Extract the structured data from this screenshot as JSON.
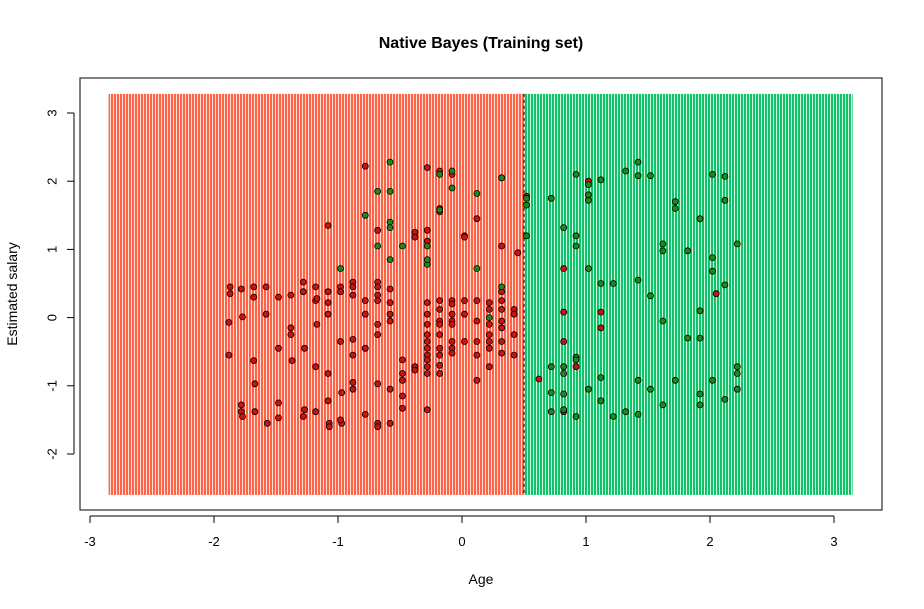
{
  "chart_data": {
    "type": "scatter",
    "title": "Native Bayes (Training set)",
    "xlabel": "Age",
    "ylabel": "Estimated salary",
    "xlim": [
      -3,
      3.3
    ],
    "ylim": [
      -2.85,
      3.5
    ],
    "xticks": [
      "-3",
      "-2",
      "-1",
      "0",
      "1",
      "2",
      "3"
    ],
    "yticks": [
      "-2",
      "-1",
      "0",
      "1",
      "2",
      "3"
    ],
    "region": {
      "x_range": [
        -2.85,
        3.15
      ],
      "y_range": [
        -2.6,
        3.28
      ],
      "boundary_x": 0.5,
      "left_color": "#FF6347",
      "right_color": "#10C569"
    },
    "colors": {
      "class0_point": "#CC1111",
      "class1_point": "#1A8A1A",
      "point_stroke": "#000000"
    },
    "series": [
      {
        "name": "0",
        "points": [
          [
            -1.87,
            0.45
          ],
          [
            -1.87,
            0.35
          ],
          [
            -1.88,
            -0.07
          ],
          [
            -1.88,
            -0.55
          ],
          [
            -1.78,
            0.42
          ],
          [
            -1.78,
            -1.28
          ],
          [
            -1.78,
            -1.38
          ],
          [
            -1.77,
            -1.45
          ],
          [
            -1.77,
            0.01
          ],
          [
            -1.68,
            0.45
          ],
          [
            -1.68,
            0.3
          ],
          [
            -1.68,
            -0.63
          ],
          [
            -1.67,
            -0.97
          ],
          [
            -1.67,
            -1.38
          ],
          [
            -1.58,
            0.45
          ],
          [
            -1.58,
            0.05
          ],
          [
            -1.57,
            -1.55
          ],
          [
            -1.48,
            0.3
          ],
          [
            -1.48,
            -0.45
          ],
          [
            -1.48,
            -1.25
          ],
          [
            -1.48,
            -1.47
          ],
          [
            -1.38,
            0.33
          ],
          [
            -1.38,
            -0.15
          ],
          [
            -1.38,
            -0.25
          ],
          [
            -1.37,
            -0.63
          ],
          [
            -1.28,
            0.52
          ],
          [
            -1.28,
            0.38
          ],
          [
            -1.27,
            -0.45
          ],
          [
            -1.27,
            -1.35
          ],
          [
            -1.28,
            -1.45
          ],
          [
            -1.18,
            0.45
          ],
          [
            -1.18,
            0.25
          ],
          [
            -1.17,
            0.28
          ],
          [
            -1.17,
            -0.1
          ],
          [
            -1.18,
            -0.72
          ],
          [
            -1.18,
            -1.38
          ],
          [
            -1.08,
            0.38
          ],
          [
            -1.08,
            0.22
          ],
          [
            -1.08,
            0.05
          ],
          [
            -1.08,
            -0.82
          ],
          [
            -1.08,
            -1.22
          ],
          [
            -1.07,
            -1.55
          ],
          [
            -1.07,
            -1.6
          ],
          [
            -1.08,
            1.35
          ],
          [
            -0.98,
            0.45
          ],
          [
            -0.98,
            0.38
          ],
          [
            -0.98,
            -0.35
          ],
          [
            -0.97,
            -1.1
          ],
          [
            -0.97,
            -1.55
          ],
          [
            -0.98,
            -1.5
          ],
          [
            -0.88,
            0.52
          ],
          [
            -0.88,
            0.33
          ],
          [
            -0.88,
            0.45
          ],
          [
            -0.88,
            -0.32
          ],
          [
            -0.88,
            -0.95
          ],
          [
            -0.88,
            -1.05
          ],
          [
            -0.88,
            -0.55
          ],
          [
            -0.78,
            0.25
          ],
          [
            -0.78,
            0.05
          ],
          [
            -0.78,
            -0.45
          ],
          [
            -0.78,
            -0.45
          ],
          [
            -0.78,
            -1.42
          ],
          [
            -0.78,
            2.22
          ],
          [
            -0.68,
            0.52
          ],
          [
            -0.68,
            0.45
          ],
          [
            -0.68,
            0.33
          ],
          [
            -0.68,
            0.25
          ],
          [
            -0.68,
            -0.1
          ],
          [
            -0.68,
            -0.25
          ],
          [
            -0.68,
            -0.97
          ],
          [
            -0.68,
            -1.55
          ],
          [
            -0.68,
            -1.6
          ],
          [
            -0.68,
            1.28
          ],
          [
            -0.58,
            0.42
          ],
          [
            -0.58,
            0.22
          ],
          [
            -0.58,
            0.05
          ],
          [
            -0.58,
            -0.05
          ],
          [
            -0.58,
            -1.05
          ],
          [
            -0.58,
            -1.55
          ],
          [
            -0.48,
            -0.62
          ],
          [
            -0.48,
            -0.82
          ],
          [
            -0.48,
            -0.92
          ],
          [
            -0.48,
            -1.15
          ],
          [
            -0.48,
            -1.33
          ],
          [
            -0.38,
            -0.72
          ],
          [
            -0.38,
            -0.77
          ],
          [
            -0.38,
            1.25
          ],
          [
            -0.38,
            1.18
          ],
          [
            -0.28,
            0.22
          ],
          [
            -0.28,
            0.05
          ],
          [
            -0.28,
            -0.1
          ],
          [
            -0.28,
            -0.25
          ],
          [
            -0.28,
            -0.45
          ],
          [
            -0.28,
            -0.35
          ],
          [
            -0.28,
            -0.55
          ],
          [
            -0.28,
            -0.62
          ],
          [
            -0.28,
            -0.72
          ],
          [
            -0.28,
            -0.82
          ],
          [
            -0.28,
            -1.35
          ],
          [
            -0.28,
            1.12
          ],
          [
            -0.28,
            1.28
          ],
          [
            -0.28,
            2.2
          ],
          [
            -0.18,
            0.25
          ],
          [
            -0.18,
            0.12
          ],
          [
            -0.18,
            -0.05
          ],
          [
            -0.18,
            -0.1
          ],
          [
            -0.18,
            -0.25
          ],
          [
            -0.18,
            -0.45
          ],
          [
            -0.18,
            -0.55
          ],
          [
            -0.18,
            -0.7
          ],
          [
            -0.18,
            -0.82
          ],
          [
            -0.18,
            1.6
          ],
          [
            -0.18,
            1.55
          ],
          [
            -0.18,
            2.15
          ],
          [
            -0.08,
            0.25
          ],
          [
            -0.08,
            0.2
          ],
          [
            -0.08,
            0.05
          ],
          [
            -0.08,
            -0.05
          ],
          [
            -0.08,
            -0.1
          ],
          [
            -0.08,
            -0.35
          ],
          [
            -0.08,
            -0.45
          ],
          [
            -0.08,
            -0.52
          ],
          [
            -0.08,
            2.1
          ],
          [
            0.02,
            0.25
          ],
          [
            0.02,
            0.05
          ],
          [
            0.02,
            -0.35
          ],
          [
            0.02,
            1.2
          ],
          [
            0.02,
            1.18
          ],
          [
            0.12,
            -0.05
          ],
          [
            0.12,
            0.25
          ],
          [
            0.12,
            -0.35
          ],
          [
            0.12,
            -0.55
          ],
          [
            0.12,
            -0.92
          ],
          [
            0.12,
            1.45
          ],
          [
            0.22,
            0.22
          ],
          [
            0.22,
            0.12
          ],
          [
            0.22,
            -0.1
          ],
          [
            0.22,
            -0.25
          ],
          [
            0.22,
            -0.35
          ],
          [
            0.22,
            -0.45
          ],
          [
            0.22,
            -0.72
          ],
          [
            0.32,
            0.38
          ],
          [
            0.32,
            0.25
          ],
          [
            0.32,
            0.12
          ],
          [
            0.32,
            -0.05
          ],
          [
            0.32,
            -0.15
          ],
          [
            0.32,
            -0.35
          ],
          [
            0.32,
            -0.52
          ],
          [
            0.32,
            1.05
          ],
          [
            0.32,
            2.05
          ],
          [
            0.42,
            0.12
          ],
          [
            0.42,
            0.05
          ],
          [
            0.42,
            -0.25
          ],
          [
            0.42,
            -0.55
          ],
          [
            0.45,
            0.95
          ],
          [
            0.52,
            1.78
          ],
          [
            0.62,
            -0.9
          ],
          [
            0.82,
            0.72
          ],
          [
            0.82,
            0.08
          ],
          [
            0.82,
            -0.35
          ],
          [
            0.82,
            -1.38
          ],
          [
            0.92,
            -0.72
          ],
          [
            1.02,
            2.0
          ],
          [
            1.12,
            0.08
          ],
          [
            1.12,
            -0.15
          ],
          [
            2.05,
            0.35
          ]
        ]
      },
      {
        "name": "1",
        "points": [
          [
            -0.98,
            0.72
          ],
          [
            -0.78,
            1.5
          ],
          [
            -0.68,
            1.05
          ],
          [
            -0.68,
            1.85
          ],
          [
            -0.58,
            2.28
          ],
          [
            -0.58,
            1.85
          ],
          [
            -0.58,
            1.4
          ],
          [
            -0.58,
            1.32
          ],
          [
            -0.58,
            0.85
          ],
          [
            -0.48,
            1.05
          ],
          [
            -0.28,
            1.05
          ],
          [
            -0.28,
            0.78
          ],
          [
            -0.28,
            0.85
          ],
          [
            -0.18,
            2.1
          ],
          [
            -0.18,
            1.58
          ],
          [
            -0.08,
            2.15
          ],
          [
            -0.08,
            1.9
          ],
          [
            0.12,
            1.82
          ],
          [
            0.12,
            0.72
          ],
          [
            0.22,
            0.0
          ],
          [
            0.32,
            2.05
          ],
          [
            0.32,
            0.45
          ],
          [
            0.52,
            1.2
          ],
          [
            0.52,
            1.65
          ],
          [
            0.52,
            1.75
          ],
          [
            0.72,
            -0.72
          ],
          [
            0.72,
            -1.1
          ],
          [
            0.72,
            -1.38
          ],
          [
            0.72,
            1.75
          ],
          [
            0.82,
            1.32
          ],
          [
            0.82,
            -0.72
          ],
          [
            0.82,
            -0.82
          ],
          [
            0.82,
            -1.12
          ],
          [
            0.82,
            -1.35
          ],
          [
            0.92,
            2.1
          ],
          [
            0.92,
            1.2
          ],
          [
            0.92,
            1.05
          ],
          [
            0.92,
            -0.58
          ],
          [
            0.92,
            -0.62
          ],
          [
            0.92,
            -1.45
          ],
          [
            1.02,
            1.95
          ],
          [
            1.02,
            1.8
          ],
          [
            1.02,
            1.72
          ],
          [
            1.02,
            0.72
          ],
          [
            1.02,
            -1.05
          ],
          [
            1.12,
            2.02
          ],
          [
            1.12,
            0.5
          ],
          [
            1.12,
            -0.88
          ],
          [
            1.12,
            -1.22
          ],
          [
            1.22,
            -1.45
          ],
          [
            1.22,
            0.5
          ],
          [
            1.32,
            2.15
          ],
          [
            1.32,
            -1.38
          ],
          [
            1.42,
            2.28
          ],
          [
            1.42,
            2.08
          ],
          [
            1.42,
            0.55
          ],
          [
            1.42,
            -0.92
          ],
          [
            1.42,
            -1.42
          ],
          [
            1.52,
            2.08
          ],
          [
            1.52,
            0.32
          ],
          [
            1.52,
            -1.05
          ],
          [
            1.62,
            1.08
          ],
          [
            1.62,
            0.98
          ],
          [
            1.62,
            -0.05
          ],
          [
            1.62,
            -1.28
          ],
          [
            1.72,
            1.7
          ],
          [
            1.72,
            1.6
          ],
          [
            1.72,
            -0.92
          ],
          [
            1.82,
            0.98
          ],
          [
            1.82,
            -0.3
          ],
          [
            1.92,
            1.45
          ],
          [
            1.92,
            0.1
          ],
          [
            1.92,
            -0.3
          ],
          [
            1.92,
            -1.12
          ],
          [
            1.92,
            -1.28
          ],
          [
            2.02,
            2.1
          ],
          [
            2.02,
            0.88
          ],
          [
            2.02,
            0.68
          ],
          [
            2.02,
            -0.92
          ],
          [
            2.12,
            2.07
          ],
          [
            2.12,
            1.72
          ],
          [
            2.12,
            0.48
          ],
          [
            2.12,
            -1.2
          ],
          [
            2.22,
            1.08
          ],
          [
            2.22,
            -0.72
          ],
          [
            2.22,
            -0.82
          ],
          [
            2.22,
            -1.05
          ]
        ]
      }
    ]
  }
}
